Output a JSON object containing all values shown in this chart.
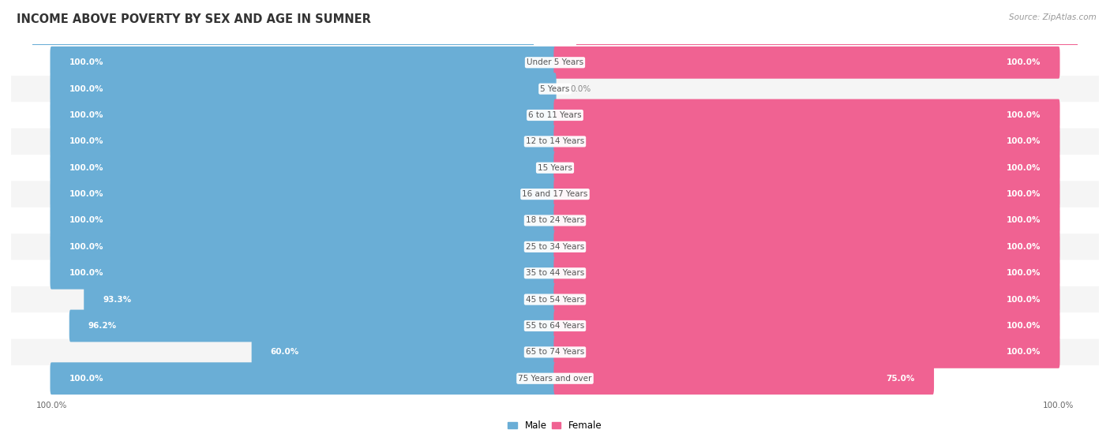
{
  "title": "INCOME ABOVE POVERTY BY SEX AND AGE IN SUMNER",
  "source": "Source: ZipAtlas.com",
  "categories": [
    "Under 5 Years",
    "5 Years",
    "6 to 11 Years",
    "12 to 14 Years",
    "15 Years",
    "16 and 17 Years",
    "18 to 24 Years",
    "25 to 34 Years",
    "35 to 44 Years",
    "45 to 54 Years",
    "55 to 64 Years",
    "65 to 74 Years",
    "75 Years and over"
  ],
  "male_values": [
    100.0,
    100.0,
    100.0,
    100.0,
    100.0,
    100.0,
    100.0,
    100.0,
    100.0,
    93.3,
    96.2,
    60.0,
    100.0
  ],
  "female_values": [
    100.0,
    0.0,
    100.0,
    100.0,
    100.0,
    100.0,
    100.0,
    100.0,
    100.0,
    100.0,
    100.0,
    100.0,
    75.0
  ],
  "male_color": "#6aaed6",
  "female_color": "#f06292",
  "female_color_light": "#f8bbd9",
  "row_color_odd": "#f5f5f5",
  "row_color_even": "#ffffff",
  "bg_color": "#ffffff",
  "text_color_white": "#ffffff",
  "text_color_dark": "#555555",
  "title_fontsize": 10.5,
  "label_fontsize": 7.5,
  "value_fontsize": 7.5,
  "tick_fontsize": 7.5,
  "legend_fontsize": 8.5,
  "top_line_male": "#6aaed6",
  "top_line_female": "#f06292"
}
